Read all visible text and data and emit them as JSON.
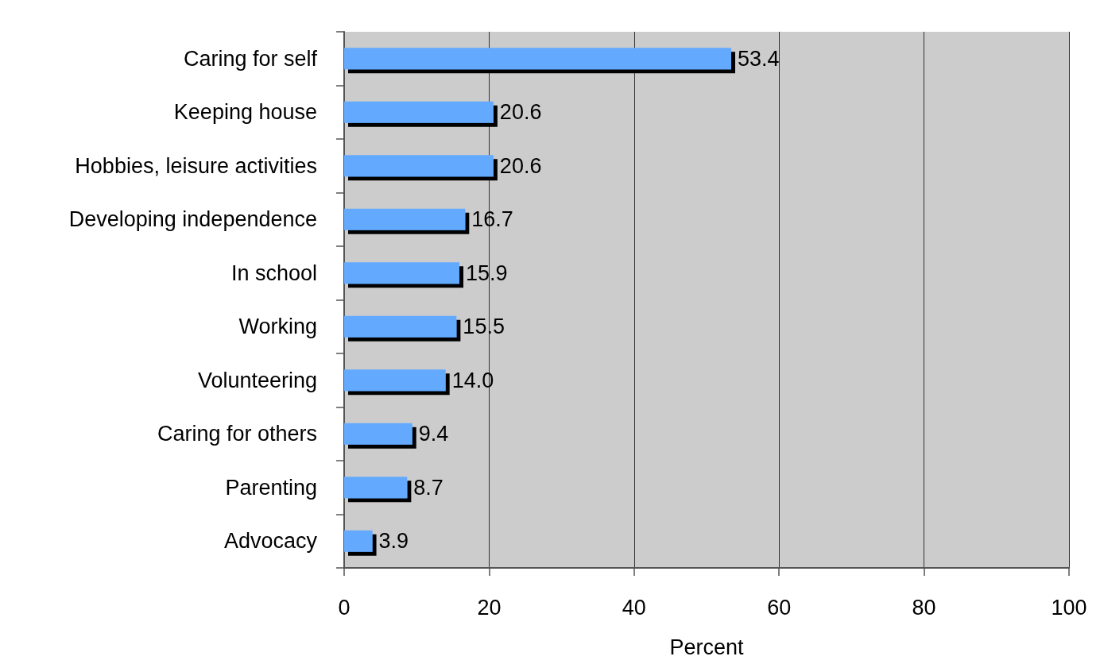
{
  "chart_data": {
    "type": "bar",
    "orientation": "horizontal",
    "categories": [
      "Caring for self",
      "Keeping house",
      "Hobbies, leisure activities",
      "Developing independence",
      "In school",
      "Working",
      "Volunteering",
      "Caring for others",
      "Parenting",
      "Advocacy"
    ],
    "values": [
      53.4,
      20.6,
      20.6,
      16.7,
      15.9,
      15.5,
      14.0,
      9.4,
      8.7,
      3.9
    ],
    "value_labels": [
      "53.4",
      "20.6",
      "20.6",
      "16.7",
      "15.9",
      "15.5",
      "14.0",
      "9.4",
      "8.7",
      "3.9"
    ],
    "color": "#64aaff",
    "xlabel": "Percent",
    "xlim": [
      0,
      100
    ],
    "xticks": [
      0,
      20,
      40,
      60,
      80,
      100
    ],
    "grid": "x"
  }
}
